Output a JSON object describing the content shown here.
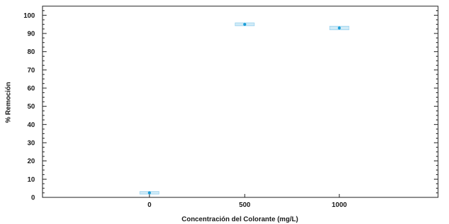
{
  "chart_data": {
    "type": "scatter",
    "title": "",
    "xlabel": "Concentración del Colorante (mg/L)",
    "ylabel": "% Remoción",
    "x_categories": [
      "0",
      "500",
      "1000"
    ],
    "y_ticks": [
      "0",
      "10",
      "20",
      "30",
      "40",
      "50",
      "60",
      "70",
      "80",
      "90",
      "100"
    ],
    "ylim": [
      0,
      105
    ],
    "grid": false,
    "series": [
      {
        "points": [
          {
            "x": "0",
            "y": 2.5,
            "ci_low": 1.8,
            "ci_high": 3.2
          },
          {
            "x": "500",
            "y": 95,
            "ci_low": 94.2,
            "ci_high": 95.8
          },
          {
            "x": "1000",
            "y": 93,
            "ci_low": 92.0,
            "ci_high": 94.0
          }
        ]
      }
    ],
    "colors": {
      "point": "#1e9fd8",
      "interval_fill": "#cfeaf7",
      "interval_edge": "#9ad3ee",
      "axis": "#1a1a1a"
    }
  }
}
